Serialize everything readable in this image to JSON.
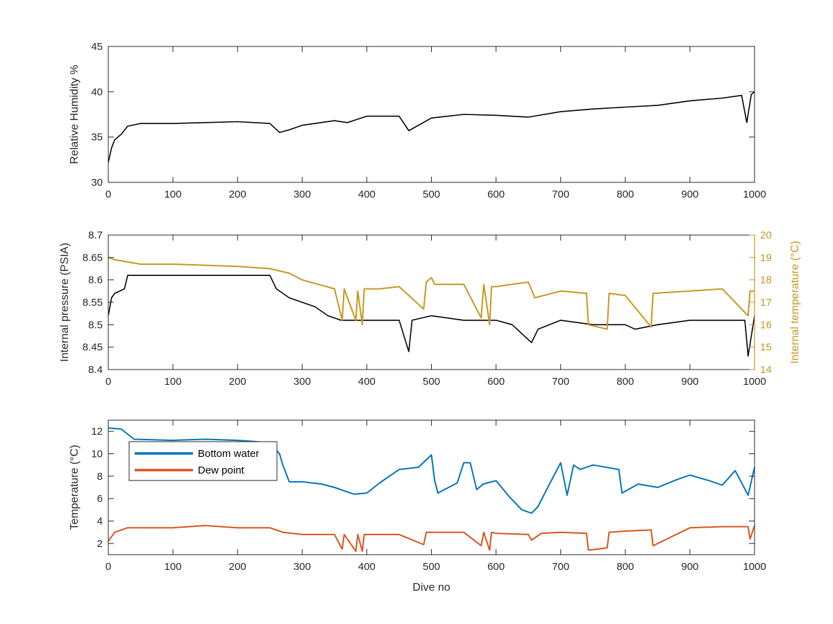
{
  "chart_data": [
    {
      "type": "line",
      "xlabel": "",
      "ylabel": "Relative Humidity %",
      "xlim": [
        0,
        1000
      ],
      "ylim": [
        30,
        45
      ],
      "xticks": [
        0,
        100,
        200,
        300,
        400,
        500,
        600,
        700,
        800,
        900,
        1000
      ],
      "yticks": [
        30,
        35,
        40,
        45
      ],
      "grid": false,
      "series": [
        {
          "color": "#000000",
          "x": [
            0,
            5,
            10,
            20,
            30,
            50,
            100,
            150,
            200,
            250,
            265,
            280,
            300,
            350,
            370,
            400,
            450,
            465,
            500,
            550,
            600,
            650,
            700,
            750,
            800,
            850,
            900,
            950,
            980,
            988,
            995,
            1000
          ],
          "y": [
            32.2,
            33.8,
            34.7,
            35.3,
            36.2,
            36.5,
            36.5,
            36.6,
            36.7,
            36.5,
            35.5,
            35.8,
            36.3,
            36.8,
            36.6,
            37.3,
            37.3,
            35.7,
            37.1,
            37.5,
            37.4,
            37.2,
            37.8,
            38.1,
            38.3,
            38.5,
            39.0,
            39.3,
            39.6,
            36.6,
            39.7,
            40.0
          ]
        }
      ]
    },
    {
      "type": "line",
      "xlabel": "",
      "ylabel": "Internal pressure (PSIA)",
      "y2label": "Internal temperature (°C)",
      "xlim": [
        0,
        1000
      ],
      "ylim": [
        8.4,
        8.7
      ],
      "y2lim": [
        14,
        20
      ],
      "xticks": [
        0,
        100,
        200,
        300,
        400,
        500,
        600,
        700,
        800,
        900,
        1000
      ],
      "yticks": [
        8.4,
        8.45,
        8.5,
        8.55,
        8.6,
        8.65,
        8.7
      ],
      "y2ticks": [
        14,
        15,
        16,
        17,
        18,
        19,
        20
      ],
      "grid": false,
      "series": [
        {
          "axis": "left",
          "color": "#000000",
          "x": [
            0,
            5,
            10,
            25,
            30,
            100,
            200,
            250,
            260,
            280,
            300,
            320,
            340,
            360,
            400,
            450,
            465,
            470,
            500,
            550,
            600,
            625,
            640,
            655,
            665,
            700,
            750,
            800,
            815,
            850,
            900,
            950,
            985,
            990,
            1000
          ],
          "y": [
            8.52,
            8.56,
            8.57,
            8.58,
            8.61,
            8.61,
            8.61,
            8.61,
            8.58,
            8.56,
            8.55,
            8.54,
            8.52,
            8.51,
            8.51,
            8.51,
            8.44,
            8.51,
            8.52,
            8.51,
            8.51,
            8.5,
            8.48,
            8.46,
            8.49,
            8.51,
            8.5,
            8.5,
            8.49,
            8.5,
            8.51,
            8.51,
            8.51,
            8.43,
            8.52
          ]
        },
        {
          "axis": "right",
          "color": "#C8961E",
          "x": [
            0,
            10,
            50,
            100,
            200,
            250,
            280,
            300,
            350,
            362,
            365,
            383,
            386,
            393,
            396,
            420,
            450,
            488,
            492,
            500,
            505,
            550,
            577,
            581,
            590,
            593,
            600,
            650,
            660,
            700,
            740,
            743,
            772,
            775,
            800,
            840,
            843,
            900,
            950,
            990,
            993,
            1000
          ],
          "y": [
            19.0,
            18.9,
            18.7,
            18.7,
            18.6,
            18.5,
            18.3,
            18.0,
            17.6,
            16.2,
            17.6,
            16.2,
            17.5,
            16.0,
            17.6,
            17.6,
            17.7,
            16.7,
            17.9,
            18.1,
            17.8,
            17.8,
            16.3,
            17.8,
            16.0,
            17.7,
            17.7,
            17.9,
            17.2,
            17.5,
            17.4,
            16.0,
            15.8,
            17.4,
            17.3,
            15.9,
            17.4,
            17.5,
            17.6,
            16.4,
            17.5,
            17.5
          ]
        }
      ]
    },
    {
      "type": "line",
      "xlabel": "Dive no",
      "ylabel": "Temperature (°C)",
      "xlim": [
        0,
        1000
      ],
      "ylim": [
        1,
        13
      ],
      "xticks": [
        0,
        100,
        200,
        300,
        400,
        500,
        600,
        700,
        800,
        900,
        1000
      ],
      "yticks": [
        2,
        4,
        6,
        8,
        10,
        12
      ],
      "grid": false,
      "legend": "top-left",
      "series": [
        {
          "name": "Bottom water",
          "color": "#0072BD",
          "x": [
            0,
            20,
            40,
            100,
            150,
            200,
            250,
            265,
            270,
            280,
            300,
            330,
            350,
            380,
            400,
            420,
            450,
            480,
            500,
            505,
            510,
            540,
            550,
            560,
            570,
            580,
            600,
            620,
            640,
            655,
            665,
            680,
            700,
            710,
            720,
            730,
            750,
            790,
            795,
            820,
            850,
            880,
            900,
            930,
            950,
            970,
            990,
            1000
          ],
          "y": [
            12.3,
            12.2,
            11.3,
            11.2,
            11.3,
            11.2,
            11.0,
            10.0,
            9.0,
            7.5,
            7.5,
            7.3,
            7.0,
            6.4,
            6.5,
            7.4,
            8.6,
            8.8,
            9.9,
            7.6,
            6.5,
            7.4,
            9.2,
            9.2,
            6.8,
            7.3,
            7.6,
            6.2,
            5.0,
            4.7,
            5.3,
            7.0,
            9.2,
            6.3,
            9.0,
            8.6,
            9.0,
            8.6,
            6.5,
            7.3,
            7.0,
            7.7,
            8.1,
            7.6,
            7.2,
            8.5,
            6.3,
            8.8
          ]
        },
        {
          "name": "Dew point",
          "color": "#D95319",
          "x": [
            0,
            10,
            30,
            100,
            150,
            200,
            250,
            265,
            270,
            300,
            350,
            362,
            365,
            383,
            386,
            393,
            396,
            450,
            488,
            492,
            500,
            550,
            577,
            581,
            590,
            593,
            600,
            650,
            655,
            670,
            700,
            740,
            743,
            772,
            775,
            800,
            840,
            843,
            900,
            950,
            990,
            993,
            1000
          ],
          "y": [
            2.2,
            3.0,
            3.4,
            3.4,
            3.6,
            3.4,
            3.4,
            3.1,
            3.0,
            2.8,
            2.8,
            1.5,
            2.8,
            1.3,
            2.8,
            1.3,
            2.8,
            2.8,
            1.9,
            3.0,
            3.0,
            3.0,
            1.8,
            3.0,
            1.4,
            3.0,
            2.9,
            2.8,
            2.3,
            2.9,
            3.0,
            2.9,
            1.4,
            1.6,
            3.0,
            3.1,
            3.2,
            1.8,
            3.4,
            3.5,
            3.5,
            2.4,
            3.6
          ]
        }
      ]
    }
  ]
}
